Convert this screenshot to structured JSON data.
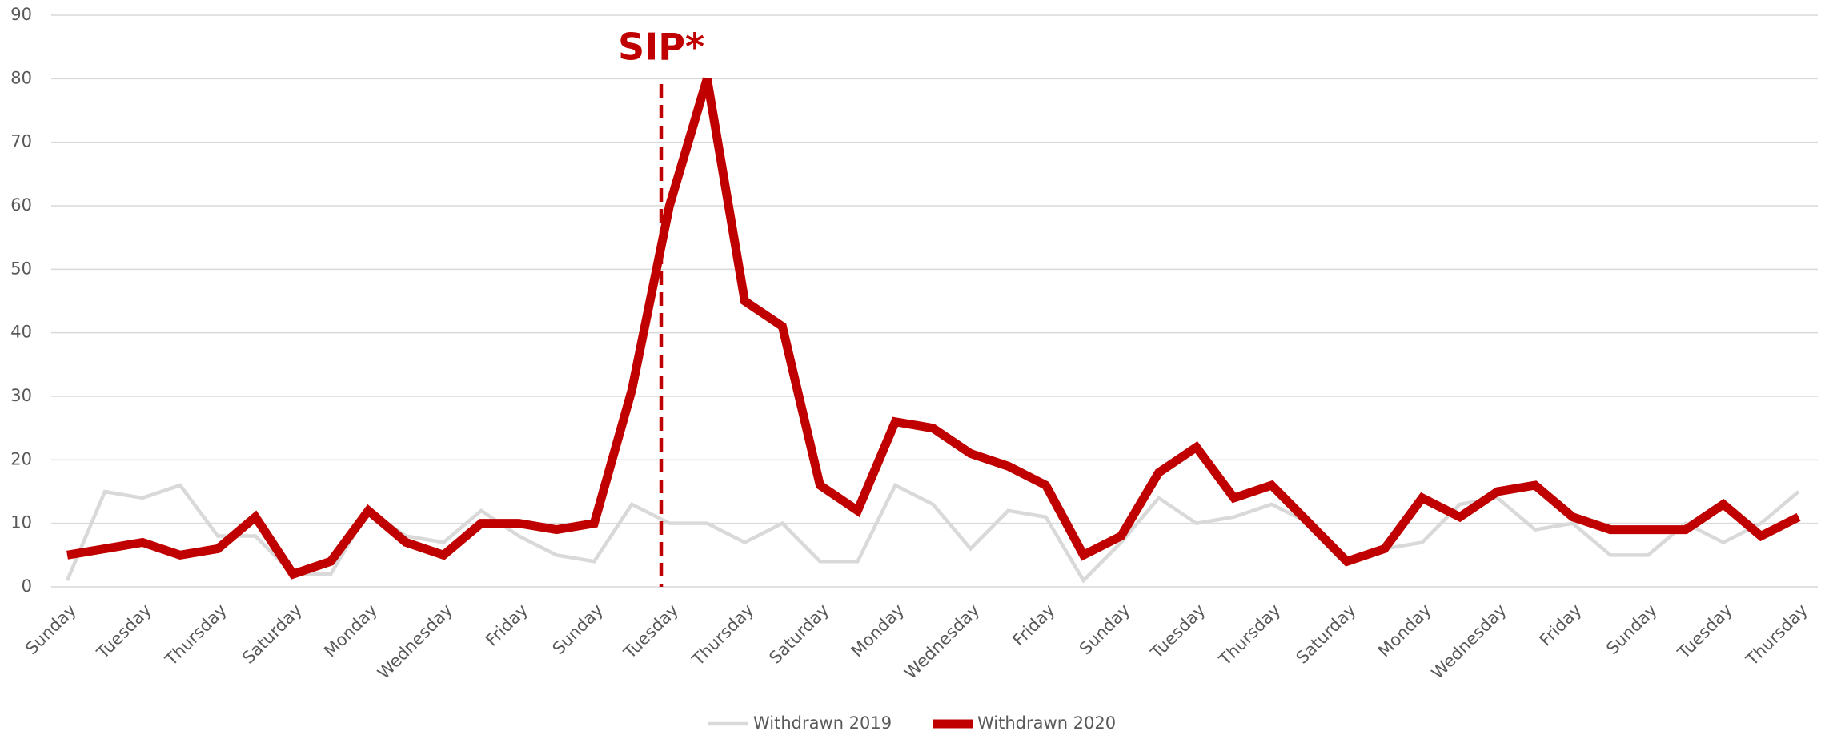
{
  "chart_data": {
    "type": "line",
    "annotation": "SIP*",
    "categories": [
      "Sunday",
      null,
      "Tuesday",
      null,
      "Thursday",
      null,
      "Saturday",
      null,
      "Monday",
      null,
      "Wednesday",
      null,
      "Friday",
      null,
      "Sunday",
      null,
      "Tuesday",
      null,
      "Thursday",
      null,
      "Saturday",
      null,
      "Monday",
      null,
      "Wednesday",
      null,
      "Friday",
      null,
      "Sunday",
      null,
      "Tuesday",
      null,
      "Thursday",
      null,
      "Saturday",
      null,
      "Monday",
      null,
      "Wednesday",
      null,
      "Friday",
      null,
      "Sunday",
      null,
      "Tuesday",
      null,
      "Thursday"
    ],
    "series": [
      {
        "name": "Withdrawn 2019",
        "color": "#d9d9d9",
        "values": [
          1,
          15,
          14,
          16,
          8,
          8,
          2,
          2,
          12,
          8,
          7,
          12,
          8,
          5,
          4,
          13,
          10,
          10,
          7,
          10,
          4,
          4,
          16,
          13,
          6,
          12,
          11,
          1,
          7,
          14,
          10,
          11,
          13,
          10,
          4,
          6,
          7,
          13,
          14,
          9,
          10,
          5,
          5,
          10,
          7,
          10,
          15
        ]
      },
      {
        "name": "Withdrawn 2020",
        "color": "#c00000",
        "values": [
          5,
          6,
          7,
          5,
          6,
          11,
          2,
          4,
          12,
          7,
          5,
          10,
          10,
          9,
          10,
          31,
          60,
          80,
          45,
          41,
          16,
          12,
          26,
          25,
          21,
          19,
          16,
          5,
          8,
          18,
          22,
          14,
          16,
          10,
          4,
          6,
          14,
          11,
          15,
          16,
          11,
          9,
          9,
          9,
          13,
          8,
          11
        ]
      }
    ],
    "ylim": [
      0,
      90
    ],
    "yticks": [
      0,
      10,
      20,
      30,
      40,
      50,
      60,
      70,
      80,
      90
    ],
    "grid": true
  }
}
